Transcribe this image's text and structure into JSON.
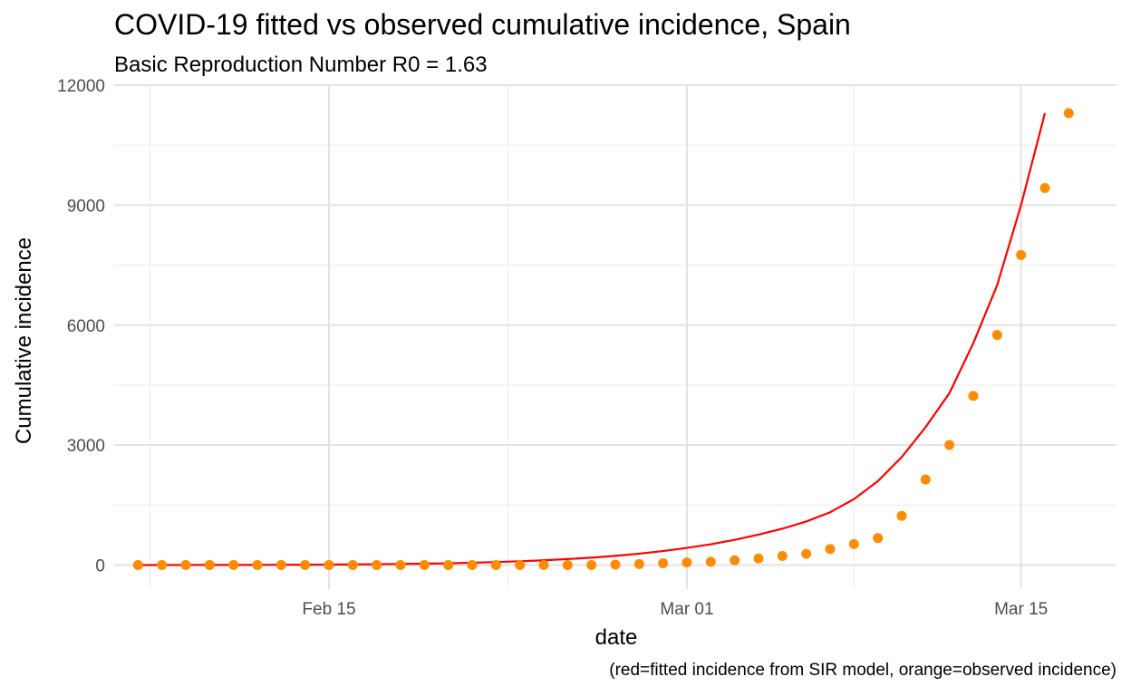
{
  "chart_data": {
    "type": "line",
    "title": "COVID-19 fitted vs observed cumulative incidence, Spain",
    "subtitle": "Basic Reproduction Number R0 = 1.63",
    "caption": "(red=fitted incidence from SIR model, orange=observed incidence)",
    "xlabel": "date",
    "ylabel": "Cumulative incidence",
    "x_ticks": [
      {
        "date": "2020-02-15",
        "label": "Feb 15"
      },
      {
        "date": "2020-03-01",
        "label": "Mar 01"
      },
      {
        "date": "2020-03-15",
        "label": "Mar 15"
      }
    ],
    "y_ticks": [
      0,
      3000,
      6000,
      9000,
      12000
    ],
    "xlim": [
      "2020-02-06",
      "2020-03-19"
    ],
    "ylim": [
      -600,
      12000
    ],
    "grid": true,
    "x": [
      "2020-02-07",
      "2020-02-08",
      "2020-02-09",
      "2020-02-10",
      "2020-02-11",
      "2020-02-12",
      "2020-02-13",
      "2020-02-14",
      "2020-02-15",
      "2020-02-16",
      "2020-02-17",
      "2020-02-18",
      "2020-02-19",
      "2020-02-20",
      "2020-02-21",
      "2020-02-22",
      "2020-02-23",
      "2020-02-24",
      "2020-02-25",
      "2020-02-26",
      "2020-02-27",
      "2020-02-28",
      "2020-02-29",
      "2020-03-01",
      "2020-03-02",
      "2020-03-03",
      "2020-03-04",
      "2020-03-05",
      "2020-03-06",
      "2020-03-07",
      "2020-03-08",
      "2020-03-09",
      "2020-03-10",
      "2020-03-11",
      "2020-03-12",
      "2020-03-13",
      "2020-03-14",
      "2020-03-15",
      "2020-03-16",
      "2020-03-17"
    ],
    "series": [
      {
        "kind": "line",
        "color": "#ff0000",
        "values": [
          1,
          1,
          2,
          3,
          4,
          5,
          7,
          9,
          12,
          16,
          21,
          27,
          35,
          45,
          58,
          75,
          95,
          120,
          150,
          185,
          230,
          285,
          350,
          430,
          520,
          630,
          760,
          910,
          1090,
          1320,
          1650,
          2100,
          2700,
          3450,
          4300,
          5550,
          7000,
          9000,
          11300,
          null
        ]
      },
      {
        "kind": "points",
        "color": "#ff8c00",
        "values": [
          1,
          1,
          2,
          2,
          2,
          2,
          2,
          2,
          2,
          2,
          2,
          2,
          2,
          2,
          2,
          2,
          2,
          2,
          2,
          2,
          12,
          25,
          45,
          66,
          84,
          120,
          165,
          228,
          282,
          401,
          525,
          674,
          1231,
          2140,
          3004,
          4231,
          5753,
          7753,
          9428,
          11300
        ]
      }
    ]
  }
}
